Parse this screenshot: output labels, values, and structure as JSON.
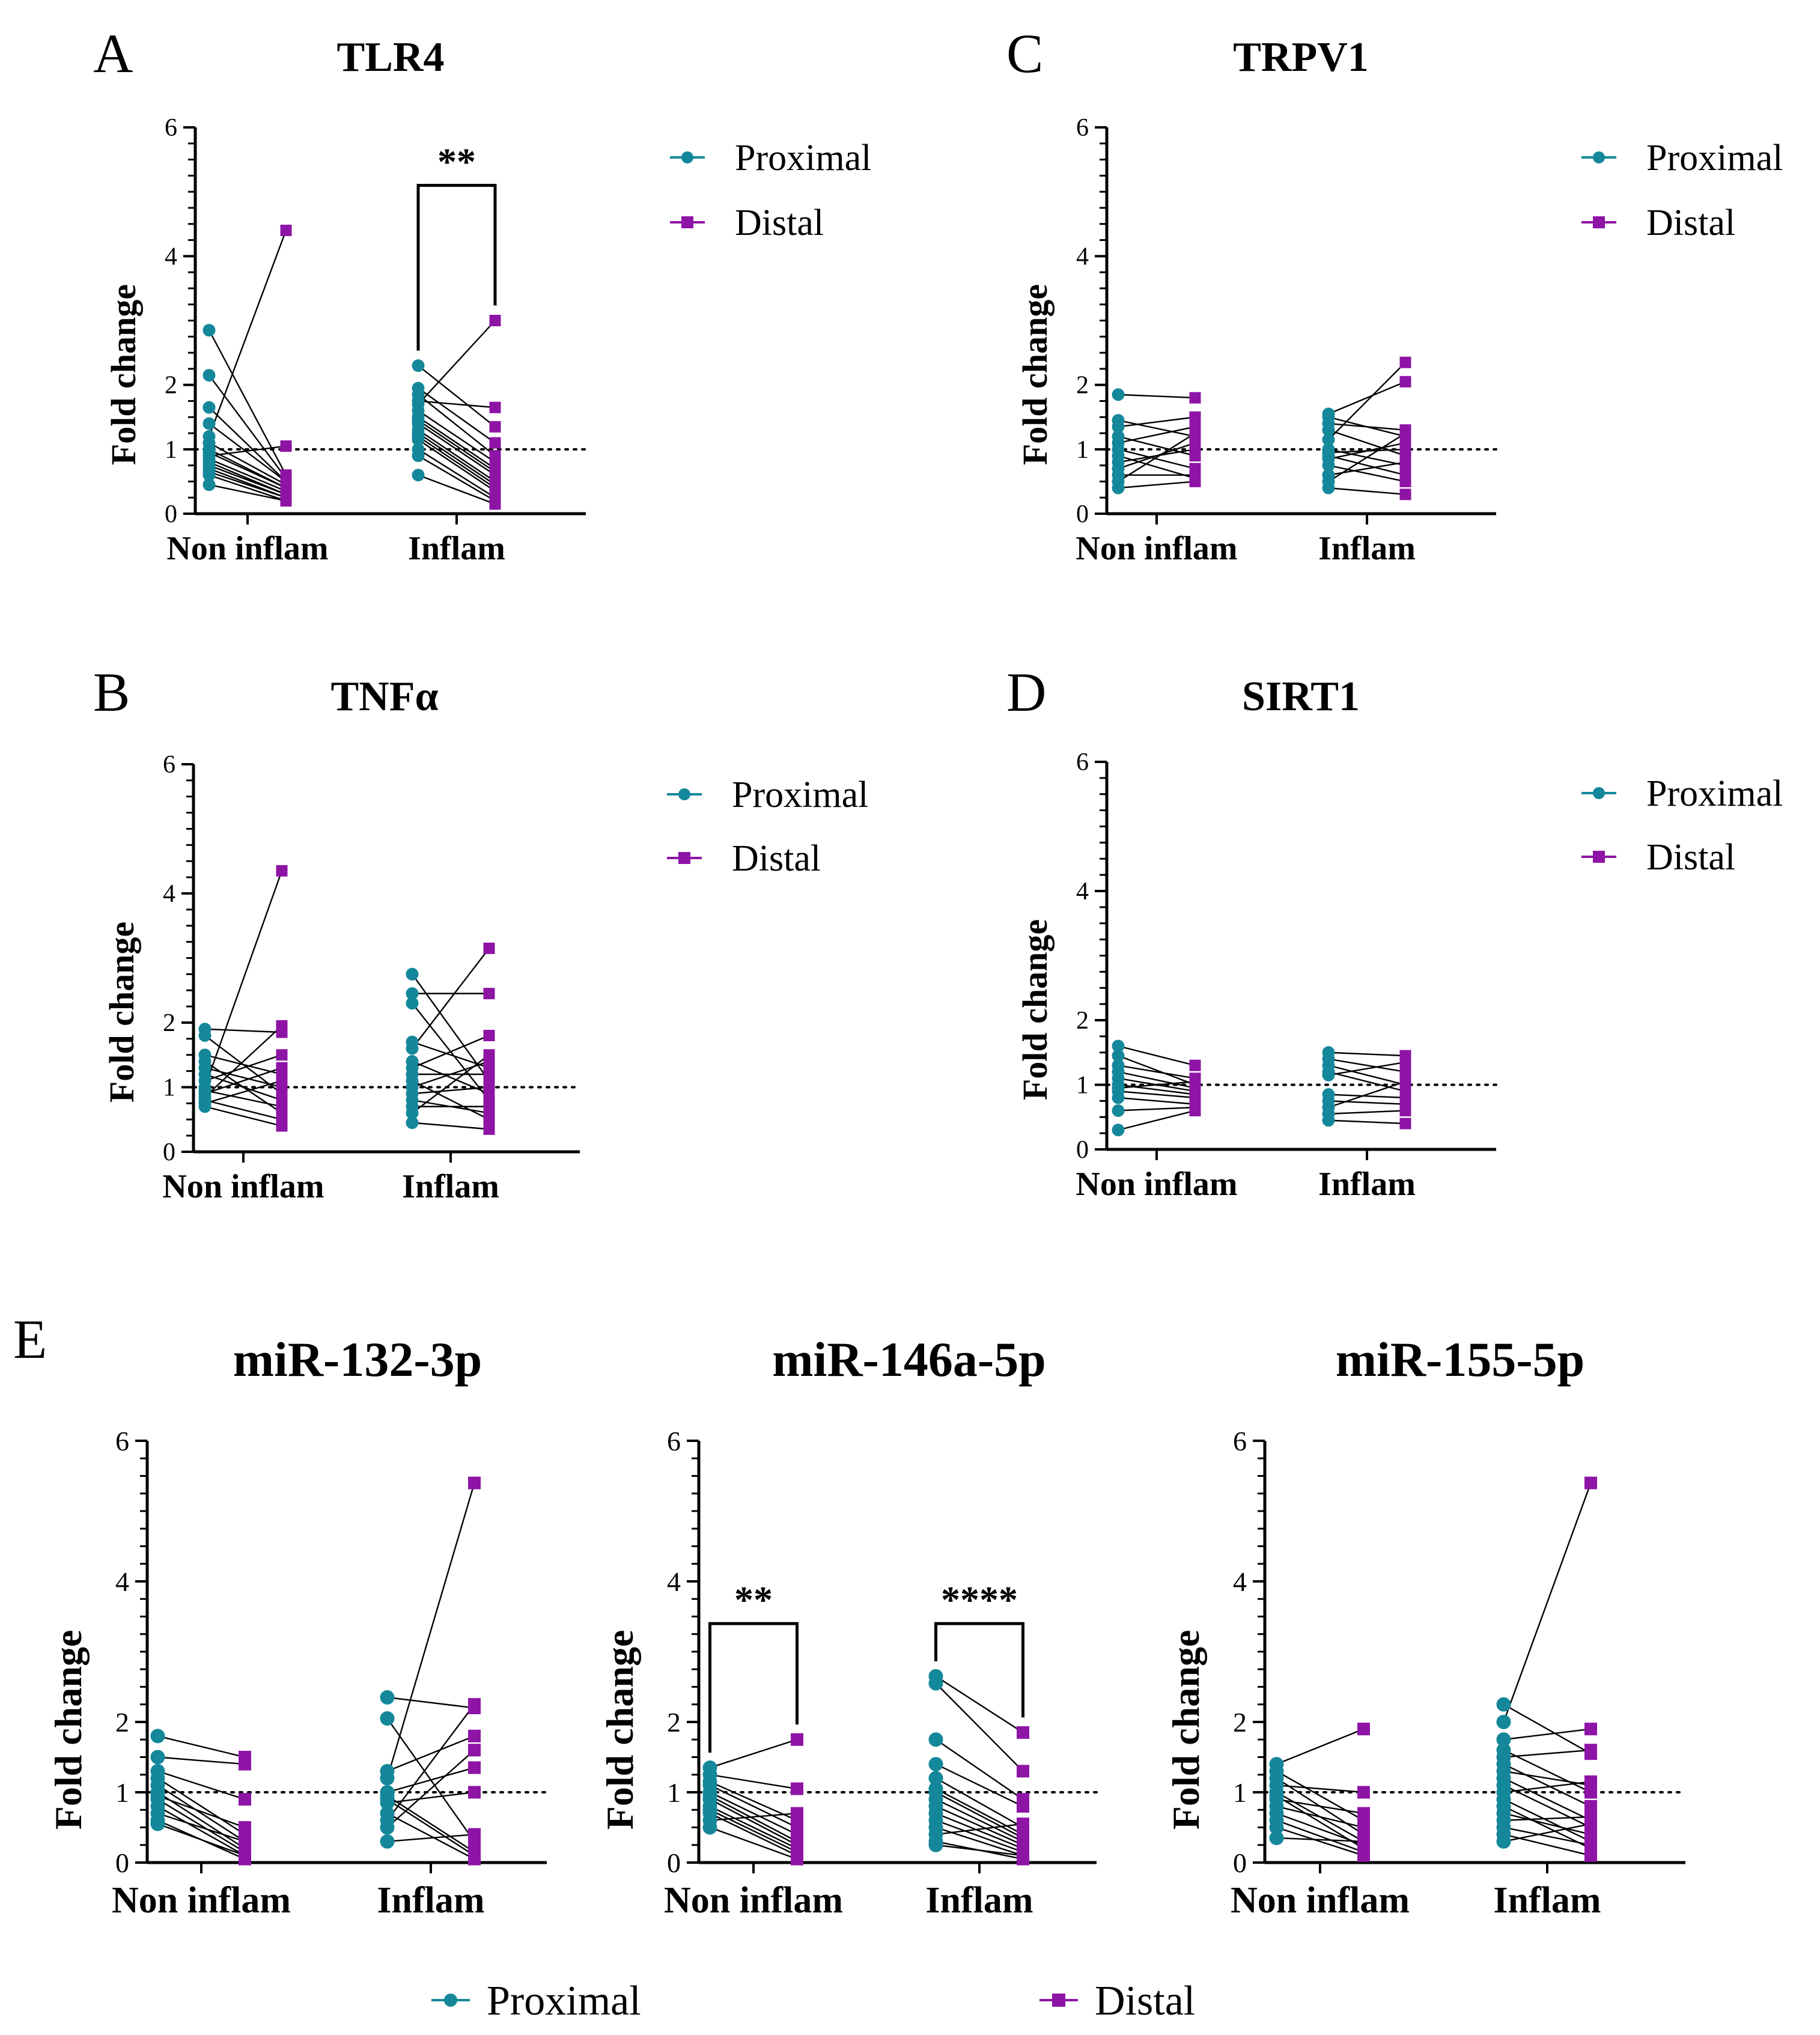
{
  "colors": {
    "proximal": "#14889a",
    "distal": "#8e14a6",
    "axis": "#000000",
    "pair_line": "#000000"
  },
  "panel_letters": {
    "a": "A",
    "b": "B",
    "c": "C",
    "d": "D",
    "e": "E"
  },
  "common": {
    "ylabel": "Fold change",
    "categories": [
      "Non inflam",
      "Inflam"
    ],
    "yticks": [
      "0",
      "1",
      "2",
      "4",
      "6"
    ],
    "legend": {
      "proximal": "Proximal",
      "distal": "Distal"
    }
  },
  "bottom_legend": {
    "proximal": "Proximal",
    "distal": "Distal"
  },
  "chart_data": [
    {
      "id": "A",
      "title": "TLR4",
      "type": "scatter",
      "ylabel": "Fold change",
      "categories": [
        "Non inflam",
        "Inflam"
      ],
      "ylim": [
        0,
        6
      ],
      "reference_line": 1,
      "series": [
        {
          "name": "Proximal",
          "marker": "circle"
        },
        {
          "name": "Distal",
          "marker": "square"
        }
      ],
      "groups": [
        {
          "category": "Non inflam",
          "proximal": [
            2.85,
            2.15,
            1.65,
            1.4,
            1.2,
            1.1,
            1.0,
            0.95,
            0.9,
            0.85,
            0.8,
            0.75,
            0.7,
            0.65,
            0.6,
            0.45
          ],
          "distal": [
            0.6,
            0.55,
            0.5,
            0.5,
            4.4,
            0.45,
            0.4,
            0.4,
            1.05,
            0.35,
            0.3,
            0.3,
            0.25,
            0.25,
            0.2,
            0.2
          ]
        },
        {
          "category": "Inflam",
          "proximal": [
            2.3,
            1.95,
            1.85,
            1.75,
            1.7,
            1.6,
            1.5,
            1.45,
            1.4,
            1.3,
            1.25,
            1.2,
            1.15,
            1.0,
            0.9,
            0.6
          ],
          "distal": [
            1.35,
            1.1,
            0.9,
            1.65,
            3.0,
            0.8,
            0.7,
            0.65,
            0.6,
            0.5,
            0.45,
            0.4,
            0.35,
            0.25,
            0.2,
            0.15
          ]
        }
      ],
      "significance": [
        {
          "label": "**",
          "category": "Inflam",
          "bracket_y": 5.1
        }
      ]
    },
    {
      "id": "B",
      "title": "TNFα",
      "type": "scatter",
      "ylabel": "Fold change",
      "categories": [
        "Non inflam",
        "Inflam"
      ],
      "ylim": [
        0,
        6
      ],
      "reference_line": 1,
      "series": [
        {
          "name": "Proximal",
          "marker": "circle"
        },
        {
          "name": "Distal",
          "marker": "square"
        }
      ],
      "groups": [
        {
          "category": "Non inflam",
          "proximal": [
            1.9,
            1.8,
            1.5,
            1.4,
            1.3,
            1.2,
            1.1,
            1.0,
            0.95,
            0.9,
            0.85,
            0.8,
            0.75,
            0.7
          ],
          "distal": [
            1.85,
            0.9,
            1.2,
            0.6,
            1.0,
            0.8,
            1.5,
            4.35,
            0.7,
            1.3,
            1.95,
            0.5,
            1.1,
            0.4
          ]
        },
        {
          "category": "Inflam",
          "proximal": [
            2.75,
            2.45,
            2.3,
            1.7,
            1.6,
            1.4,
            1.3,
            1.2,
            1.1,
            1.0,
            0.9,
            0.8,
            0.7,
            0.6,
            0.45
          ],
          "distal": [
            1.1,
            2.45,
            0.8,
            1.3,
            3.15,
            0.9,
            1.8,
            1.2,
            0.5,
            1.4,
            1.0,
            0.6,
            0.7,
            1.5,
            0.35
          ]
        }
      ],
      "significance": []
    },
    {
      "id": "C",
      "title": "TRPV1",
      "type": "scatter",
      "ylabel": "Fold change",
      "categories": [
        "Non inflam",
        "Inflam"
      ],
      "ylim": [
        0,
        6
      ],
      "reference_line": 1,
      "series": [
        {
          "name": "Proximal",
          "marker": "circle"
        },
        {
          "name": "Distal",
          "marker": "square"
        }
      ],
      "groups": [
        {
          "category": "Non inflam",
          "proximal": [
            1.85,
            1.45,
            1.35,
            1.2,
            1.1,
            1.0,
            0.9,
            0.8,
            0.7,
            0.6,
            0.5,
            0.4
          ],
          "distal": [
            1.8,
            1.2,
            1.5,
            0.9,
            1.35,
            0.7,
            0.55,
            1.0,
            1.1,
            0.6,
            1.25,
            0.5
          ]
        },
        {
          "category": "Inflam",
          "proximal": [
            1.55,
            1.5,
            1.4,
            1.3,
            1.15,
            1.0,
            0.95,
            0.9,
            0.85,
            0.75,
            0.6,
            0.5,
            0.4
          ],
          "distal": [
            2.05,
            1.2,
            1.3,
            0.9,
            2.35,
            0.75,
            1.0,
            0.6,
            1.1,
            0.5,
            0.8,
            1.25,
            0.3
          ]
        }
      ],
      "significance": []
    },
    {
      "id": "D",
      "title": "SIRT1",
      "type": "scatter",
      "ylabel": "Fold change",
      "categories": [
        "Non inflam",
        "Inflam"
      ],
      "ylim": [
        0,
        6
      ],
      "reference_line": 1,
      "series": [
        {
          "name": "Proximal",
          "marker": "circle"
        },
        {
          "name": "Distal",
          "marker": "square"
        }
      ],
      "groups": [
        {
          "category": "Non inflam",
          "proximal": [
            1.6,
            1.45,
            1.3,
            1.2,
            1.1,
            1.0,
            0.95,
            0.9,
            0.8,
            0.6,
            0.3
          ],
          "distal": [
            1.3,
            1.0,
            1.1,
            0.95,
            0.9,
            0.85,
            1.05,
            0.8,
            0.7,
            0.65,
            0.6
          ]
        },
        {
          "category": "Inflam",
          "proximal": [
            1.5,
            1.4,
            1.3,
            1.2,
            1.15,
            0.85,
            0.75,
            0.65,
            0.55,
            0.45
          ],
          "distal": [
            1.45,
            1.2,
            1.0,
            0.9,
            1.35,
            0.8,
            0.7,
            1.05,
            0.6,
            0.4
          ]
        }
      ],
      "significance": []
    },
    {
      "id": "E1",
      "title": "miR-132-3p",
      "type": "scatter",
      "ylabel": "Fold change",
      "categories": [
        "Non inflam",
        "Inflam"
      ],
      "ylim": [
        0,
        6
      ],
      "reference_line": 1,
      "series": [
        {
          "name": "Proximal",
          "marker": "circle"
        },
        {
          "name": "Distal",
          "marker": "square"
        }
      ],
      "groups": [
        {
          "category": "Non inflam",
          "proximal": [
            1.8,
            1.5,
            1.3,
            1.2,
            1.1,
            1.0,
            0.95,
            0.9,
            0.8,
            0.7,
            0.6,
            0.55
          ],
          "distal": [
            1.5,
            1.4,
            0.9,
            0.4,
            0.3,
            0.2,
            0.5,
            0.15,
            0.1,
            0.3,
            0.05,
            0.1
          ]
        },
        {
          "category": "Inflam",
          "proximal": [
            2.35,
            2.05,
            1.3,
            1.2,
            1.0,
            0.95,
            0.9,
            0.85,
            0.7,
            0.6,
            0.5,
            0.3
          ],
          "distal": [
            2.2,
            0.3,
            1.8,
            5.4,
            1.35,
            0.15,
            0.1,
            1.0,
            0.05,
            2.25,
            1.6,
            0.4
          ]
        }
      ],
      "significance": []
    },
    {
      "id": "E2",
      "title": "miR-146a-5p",
      "type": "scatter",
      "ylabel": "Fold change",
      "categories": [
        "Non inflam",
        "Inflam"
      ],
      "ylim": [
        0,
        6
      ],
      "reference_line": 1,
      "series": [
        {
          "name": "Proximal",
          "marker": "circle"
        },
        {
          "name": "Distal",
          "marker": "square"
        }
      ],
      "groups": [
        {
          "category": "Non inflam",
          "proximal": [
            1.35,
            1.25,
            1.15,
            1.1,
            1.0,
            0.95,
            0.9,
            0.8,
            0.75,
            0.7,
            0.6,
            0.5
          ],
          "distal": [
            1.75,
            1.05,
            0.6,
            0.5,
            0.4,
            0.3,
            0.25,
            0.2,
            0.15,
            0.1,
            0.7,
            0.05
          ]
        },
        {
          "category": "Inflam",
          "proximal": [
            2.65,
            2.55,
            1.75,
            1.4,
            1.2,
            1.05,
            1.0,
            0.9,
            0.8,
            0.7,
            0.6,
            0.5,
            0.4,
            0.3,
            0.25
          ],
          "distal": [
            1.85,
            1.3,
            0.9,
            0.8,
            0.5,
            0.4,
            0.35,
            0.3,
            0.25,
            0.2,
            0.15,
            0.1,
            0.55,
            0.05,
            0.1
          ]
        }
      ],
      "significance": [
        {
          "label": "**",
          "category": "Non inflam",
          "bracket_y": 3.4
        },
        {
          "label": "****",
          "category": "Inflam",
          "bracket_y": 3.4
        }
      ]
    },
    {
      "id": "E3",
      "title": "miR-155-5p",
      "type": "scatter",
      "ylabel": "Fold change",
      "categories": [
        "Non inflam",
        "Inflam"
      ],
      "ylim": [
        0,
        6
      ],
      "reference_line": 1,
      "series": [
        {
          "name": "Proximal",
          "marker": "circle"
        },
        {
          "name": "Distal",
          "marker": "square"
        }
      ],
      "groups": [
        {
          "category": "Non inflam",
          "proximal": [
            1.4,
            1.3,
            1.2,
            1.1,
            1.0,
            0.95,
            0.9,
            0.8,
            0.7,
            0.6,
            0.5,
            0.35
          ],
          "distal": [
            1.9,
            0.6,
            0.4,
            1.0,
            0.3,
            0.2,
            0.7,
            0.5,
            0.25,
            0.15,
            0.1,
            0.3
          ]
        },
        {
          "category": "Inflam",
          "proximal": [
            2.25,
            2.0,
            1.75,
            1.6,
            1.5,
            1.4,
            1.3,
            1.2,
            1.1,
            1.0,
            0.9,
            0.8,
            0.7,
            0.6,
            0.5,
            0.4,
            0.3
          ],
          "distal": [
            1.55,
            5.4,
            1.9,
            1.0,
            1.6,
            0.8,
            1.1,
            0.6,
            0.5,
            1.15,
            0.3,
            0.2,
            0.4,
            0.65,
            0.25,
            0.1,
            0.55
          ]
        }
      ],
      "significance": []
    }
  ]
}
